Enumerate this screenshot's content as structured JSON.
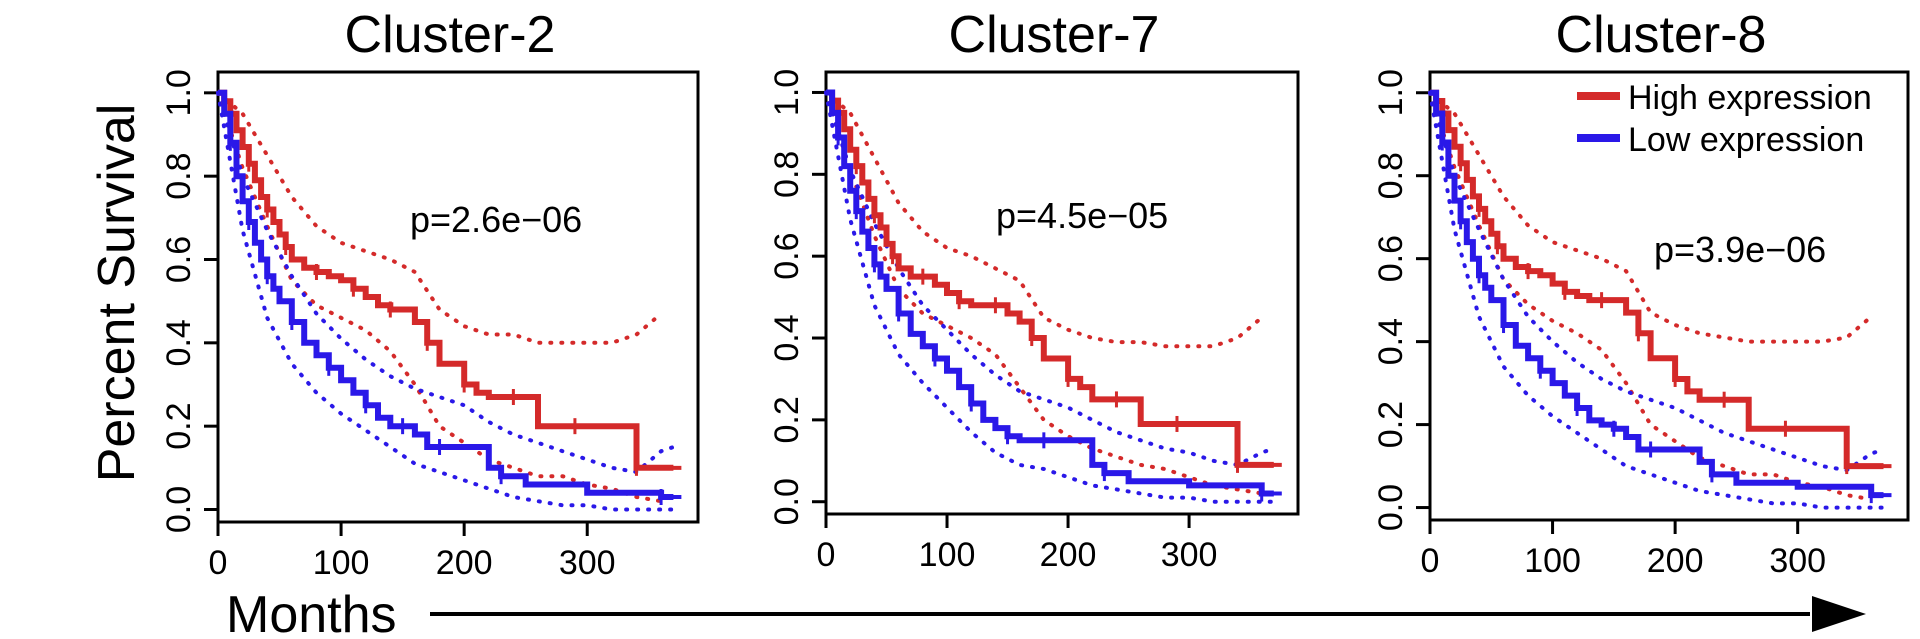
{
  "figure": {
    "ylabel": "Percent Survival",
    "xlabel": "Months"
  },
  "colors": {
    "high": "#d42a2a",
    "low": "#2a18e8",
    "axis": "#000000"
  },
  "legend": {
    "placement": "top-right",
    "items": [
      {
        "label": "High expression",
        "color": "#d42a2a"
      },
      {
        "label": "Low expression",
        "color": "#2a18e8"
      }
    ]
  },
  "chart_data": [
    {
      "type": "line",
      "title": "Cluster-2",
      "pvalue": "p=2.6e−06",
      "xlim": [
        0,
        390
      ],
      "ylim": [
        -0.03,
        1.05
      ],
      "xticks": [
        "0",
        "100",
        "200",
        "300"
      ],
      "xtick_values": [
        0,
        100,
        200,
        300
      ],
      "yticks": [
        "0.0",
        "0.2",
        "0.4",
        "0.6",
        "0.8",
        "1.0"
      ],
      "ytick_values": [
        0,
        0.2,
        0.4,
        0.6,
        0.8,
        1.0
      ],
      "series": [
        {
          "name": "High expression",
          "x": [
            0,
            5,
            10,
            15,
            20,
            25,
            30,
            35,
            40,
            45,
            50,
            55,
            60,
            70,
            80,
            90,
            100,
            110,
            120,
            130,
            140,
            150,
            160,
            170,
            180,
            190,
            200,
            210,
            220,
            240,
            260,
            270,
            290,
            300,
            320,
            340,
            350,
            370
          ],
          "y": [
            1.0,
            0.98,
            0.95,
            0.91,
            0.87,
            0.83,
            0.79,
            0.75,
            0.72,
            0.69,
            0.66,
            0.63,
            0.6,
            0.58,
            0.57,
            0.56,
            0.55,
            0.53,
            0.51,
            0.49,
            0.48,
            0.48,
            0.45,
            0.4,
            0.35,
            0.35,
            0.3,
            0.28,
            0.27,
            0.27,
            0.2,
            0.2,
            0.2,
            0.2,
            0.2,
            0.1,
            0.1,
            0.1
          ]
        },
        {
          "name": "Low expression",
          "x": [
            0,
            5,
            10,
            15,
            20,
            25,
            30,
            35,
            40,
            45,
            50,
            60,
            70,
            80,
            90,
            100,
            110,
            120,
            130,
            140,
            150,
            160,
            170,
            180,
            200,
            220,
            230,
            250,
            300,
            360,
            370
          ],
          "y": [
            1.0,
            0.95,
            0.88,
            0.8,
            0.74,
            0.69,
            0.64,
            0.6,
            0.56,
            0.53,
            0.5,
            0.45,
            0.4,
            0.37,
            0.34,
            0.31,
            0.28,
            0.25,
            0.22,
            0.2,
            0.2,
            0.18,
            0.15,
            0.15,
            0.15,
            0.1,
            0.08,
            0.06,
            0.04,
            0.03,
            0.03
          ]
        }
      ],
      "ci": [
        {
          "series": "High expression",
          "bound": "upper",
          "x": [
            0,
            20,
            40,
            60,
            80,
            100,
            120,
            140,
            160,
            180,
            200,
            220,
            240,
            260,
            280,
            300,
            320,
            340,
            360
          ],
          "y": [
            1.0,
            0.95,
            0.85,
            0.75,
            0.68,
            0.64,
            0.62,
            0.6,
            0.57,
            0.48,
            0.44,
            0.42,
            0.42,
            0.4,
            0.4,
            0.4,
            0.4,
            0.42,
            0.47
          ]
        },
        {
          "series": "High expression",
          "bound": "lower",
          "x": [
            0,
            20,
            40,
            60,
            80,
            100,
            120,
            140,
            160,
            180,
            200,
            220,
            240,
            260,
            280,
            300,
            320,
            340,
            360
          ],
          "y": [
            1.0,
            0.82,
            0.68,
            0.55,
            0.49,
            0.46,
            0.43,
            0.38,
            0.3,
            0.2,
            0.16,
            0.12,
            0.1,
            0.08,
            0.08,
            0.06,
            0.05,
            0.03,
            0.02
          ]
        },
        {
          "series": "Low expression",
          "bound": "upper",
          "x": [
            0,
            20,
            40,
            60,
            80,
            100,
            120,
            140,
            160,
            180,
            200,
            220,
            240,
            260,
            280,
            300,
            320,
            340,
            360,
            370
          ],
          "y": [
            1.0,
            0.8,
            0.67,
            0.56,
            0.47,
            0.41,
            0.36,
            0.32,
            0.29,
            0.27,
            0.25,
            0.21,
            0.18,
            0.16,
            0.14,
            0.12,
            0.1,
            0.09,
            0.14,
            0.15
          ]
        },
        {
          "series": "Low expression",
          "bound": "lower",
          "x": [
            0,
            20,
            40,
            60,
            80,
            100,
            120,
            140,
            160,
            180,
            200,
            220,
            240,
            260,
            280,
            300,
            320,
            340,
            360,
            370
          ],
          "y": [
            1.0,
            0.67,
            0.46,
            0.35,
            0.28,
            0.23,
            0.19,
            0.15,
            0.11,
            0.09,
            0.07,
            0.05,
            0.03,
            0.02,
            0.01,
            0.01,
            0.0,
            0.0,
            0.0,
            0.0
          ]
        }
      ]
    },
    {
      "type": "line",
      "title": "Cluster-7",
      "pvalue": "p=4.5e−05",
      "xlim": [
        0,
        390
      ],
      "ylim": [
        -0.03,
        1.05
      ],
      "xticks": [
        "0",
        "100",
        "200",
        "300"
      ],
      "xtick_values": [
        0,
        100,
        200,
        300
      ],
      "yticks": [
        "0.0",
        "0.2",
        "0.4",
        "0.6",
        "0.8",
        "1.0"
      ],
      "ytick_values": [
        0,
        0.2,
        0.4,
        0.6,
        0.8,
        1.0
      ],
      "series": [
        {
          "name": "High expression",
          "x": [
            0,
            5,
            10,
            15,
            20,
            25,
            30,
            35,
            40,
            45,
            50,
            55,
            60,
            70,
            80,
            90,
            100,
            110,
            120,
            130,
            140,
            150,
            160,
            170,
            180,
            190,
            200,
            210,
            220,
            240,
            260,
            270,
            290,
            300,
            320,
            340,
            350,
            370
          ],
          "y": [
            1.0,
            0.98,
            0.95,
            0.91,
            0.86,
            0.82,
            0.78,
            0.74,
            0.7,
            0.67,
            0.63,
            0.6,
            0.57,
            0.55,
            0.55,
            0.53,
            0.51,
            0.49,
            0.48,
            0.48,
            0.48,
            0.46,
            0.44,
            0.4,
            0.35,
            0.35,
            0.3,
            0.28,
            0.25,
            0.25,
            0.19,
            0.19,
            0.19,
            0.19,
            0.19,
            0.09,
            0.09,
            0.09
          ]
        },
        {
          "name": "Low expression",
          "x": [
            0,
            5,
            10,
            15,
            20,
            25,
            30,
            35,
            40,
            45,
            50,
            60,
            70,
            80,
            90,
            100,
            110,
            120,
            130,
            140,
            150,
            160,
            170,
            180,
            200,
            220,
            230,
            250,
            300,
            360,
            370
          ],
          "y": [
            1.0,
            0.95,
            0.89,
            0.82,
            0.76,
            0.71,
            0.66,
            0.62,
            0.58,
            0.55,
            0.52,
            0.46,
            0.41,
            0.38,
            0.35,
            0.32,
            0.28,
            0.24,
            0.2,
            0.18,
            0.16,
            0.15,
            0.15,
            0.15,
            0.15,
            0.09,
            0.07,
            0.05,
            0.04,
            0.02,
            0.02
          ]
        }
      ],
      "ci": [
        {
          "series": "High expression",
          "bound": "upper",
          "x": [
            0,
            20,
            40,
            60,
            80,
            100,
            120,
            140,
            160,
            180,
            200,
            220,
            240,
            260,
            280,
            300,
            320,
            340,
            360
          ],
          "y": [
            1.0,
            0.95,
            0.84,
            0.73,
            0.66,
            0.62,
            0.6,
            0.57,
            0.54,
            0.45,
            0.42,
            0.4,
            0.39,
            0.39,
            0.38,
            0.38,
            0.38,
            0.4,
            0.45
          ]
        },
        {
          "series": "High expression",
          "bound": "lower",
          "x": [
            0,
            20,
            40,
            60,
            80,
            100,
            120,
            140,
            160,
            180,
            200,
            220,
            240,
            260,
            280,
            300,
            320,
            340,
            360
          ],
          "y": [
            1.0,
            0.81,
            0.65,
            0.52,
            0.46,
            0.43,
            0.4,
            0.36,
            0.28,
            0.2,
            0.16,
            0.13,
            0.11,
            0.09,
            0.08,
            0.06,
            0.04,
            0.03,
            0.02
          ]
        },
        {
          "series": "Low expression",
          "bound": "upper",
          "x": [
            0,
            20,
            40,
            60,
            80,
            100,
            120,
            140,
            160,
            180,
            200,
            220,
            240,
            260,
            280,
            300,
            320,
            340,
            360,
            370
          ],
          "y": [
            1.0,
            0.81,
            0.68,
            0.57,
            0.48,
            0.42,
            0.36,
            0.31,
            0.27,
            0.25,
            0.23,
            0.2,
            0.17,
            0.15,
            0.13,
            0.12,
            0.1,
            0.09,
            0.12,
            0.13
          ]
        },
        {
          "series": "Low expression",
          "bound": "lower",
          "x": [
            0,
            20,
            40,
            60,
            80,
            100,
            120,
            140,
            160,
            180,
            200,
            220,
            240,
            260,
            280,
            300,
            320,
            340,
            360,
            370
          ],
          "y": [
            1.0,
            0.69,
            0.48,
            0.36,
            0.29,
            0.23,
            0.17,
            0.12,
            0.09,
            0.08,
            0.06,
            0.04,
            0.03,
            0.02,
            0.01,
            0.01,
            0.0,
            0.0,
            0.0,
            0.0
          ]
        }
      ]
    },
    {
      "type": "line",
      "title": "Cluster-8",
      "pvalue": "p=3.9e−06",
      "xlim": [
        0,
        390
      ],
      "ylim": [
        -0.03,
        1.05
      ],
      "xticks": [
        "0",
        "100",
        "200",
        "300"
      ],
      "xtick_values": [
        0,
        100,
        200,
        300
      ],
      "yticks": [
        "0.0",
        "0.2",
        "0.4",
        "0.6",
        "0.8",
        "1.0"
      ],
      "ytick_values": [
        0,
        0.2,
        0.4,
        0.6,
        0.8,
        1.0
      ],
      "series": [
        {
          "name": "High expression",
          "x": [
            0,
            5,
            10,
            15,
            20,
            25,
            30,
            35,
            40,
            45,
            50,
            55,
            60,
            70,
            80,
            90,
            100,
            110,
            120,
            130,
            140,
            150,
            160,
            170,
            180,
            190,
            200,
            210,
            220,
            240,
            260,
            270,
            290,
            300,
            320,
            340,
            350,
            370
          ],
          "y": [
            1.0,
            0.98,
            0.95,
            0.91,
            0.87,
            0.83,
            0.79,
            0.75,
            0.72,
            0.69,
            0.66,
            0.63,
            0.6,
            0.58,
            0.57,
            0.56,
            0.54,
            0.52,
            0.51,
            0.5,
            0.5,
            0.5,
            0.47,
            0.42,
            0.36,
            0.36,
            0.31,
            0.28,
            0.26,
            0.26,
            0.19,
            0.19,
            0.19,
            0.19,
            0.19,
            0.1,
            0.1,
            0.1
          ]
        },
        {
          "name": "Low expression",
          "x": [
            0,
            5,
            10,
            15,
            20,
            25,
            30,
            35,
            40,
            45,
            50,
            60,
            70,
            80,
            90,
            100,
            110,
            120,
            130,
            140,
            150,
            160,
            170,
            180,
            200,
            220,
            230,
            250,
            300,
            360,
            370
          ],
          "y": [
            1.0,
            0.95,
            0.88,
            0.8,
            0.74,
            0.69,
            0.64,
            0.6,
            0.56,
            0.53,
            0.5,
            0.44,
            0.39,
            0.36,
            0.33,
            0.3,
            0.27,
            0.24,
            0.21,
            0.2,
            0.19,
            0.17,
            0.14,
            0.14,
            0.14,
            0.11,
            0.08,
            0.06,
            0.05,
            0.03,
            0.03
          ]
        }
      ],
      "ci": [
        {
          "series": "High expression",
          "bound": "upper",
          "x": [
            0,
            20,
            40,
            60,
            80,
            100,
            120,
            140,
            160,
            180,
            200,
            220,
            240,
            260,
            280,
            300,
            320,
            340,
            360
          ],
          "y": [
            1.0,
            0.95,
            0.85,
            0.75,
            0.68,
            0.64,
            0.62,
            0.6,
            0.57,
            0.47,
            0.44,
            0.42,
            0.41,
            0.4,
            0.4,
            0.4,
            0.4,
            0.41,
            0.46
          ]
        },
        {
          "series": "High expression",
          "bound": "lower",
          "x": [
            0,
            20,
            40,
            60,
            80,
            100,
            120,
            140,
            160,
            180,
            200,
            220,
            240,
            260,
            280,
            300,
            320,
            340,
            360
          ],
          "y": [
            1.0,
            0.82,
            0.68,
            0.55,
            0.49,
            0.45,
            0.42,
            0.38,
            0.3,
            0.2,
            0.16,
            0.12,
            0.1,
            0.08,
            0.08,
            0.06,
            0.05,
            0.03,
            0.02
          ]
        },
        {
          "series": "Low expression",
          "bound": "upper",
          "x": [
            0,
            20,
            40,
            60,
            80,
            100,
            120,
            140,
            160,
            180,
            200,
            220,
            240,
            260,
            280,
            300,
            320,
            340,
            360,
            370
          ],
          "y": [
            1.0,
            0.8,
            0.67,
            0.55,
            0.46,
            0.4,
            0.35,
            0.31,
            0.28,
            0.26,
            0.24,
            0.21,
            0.18,
            0.16,
            0.14,
            0.12,
            0.1,
            0.09,
            0.13,
            0.14
          ]
        },
        {
          "series": "Low expression",
          "bound": "lower",
          "x": [
            0,
            20,
            40,
            60,
            80,
            100,
            120,
            140,
            160,
            180,
            200,
            220,
            240,
            260,
            280,
            300,
            320,
            340,
            360,
            370
          ],
          "y": [
            1.0,
            0.67,
            0.46,
            0.34,
            0.27,
            0.22,
            0.18,
            0.14,
            0.1,
            0.08,
            0.06,
            0.04,
            0.03,
            0.02,
            0.01,
            0.01,
            0.0,
            0.0,
            0.0,
            0.0
          ]
        }
      ]
    }
  ]
}
